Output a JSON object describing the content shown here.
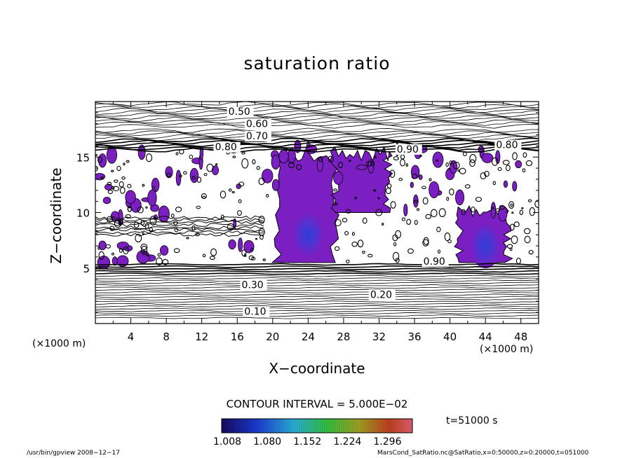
{
  "chart_data": {
    "type": "heatmap",
    "title": "saturation ratio",
    "xlabel": "X−coordinate",
    "ylabel": "Z−coordinate",
    "x_unit_left": "(×1000 m)",
    "x_unit_right": "(×1000 m)",
    "xlim": [
      0,
      50
    ],
    "ylim": [
      0,
      20
    ],
    "x_ticks": [
      4,
      8,
      12,
      16,
      20,
      24,
      28,
      32,
      36,
      40,
      44,
      48
    ],
    "y_ticks": [
      5,
      10,
      15
    ],
    "contour_labels": [
      {
        "text": "0.50",
        "x": 15.0,
        "z": 18.8
      },
      {
        "text": "0.60",
        "x": 17.0,
        "z": 17.7
      },
      {
        "text": "0.70",
        "x": 17.0,
        "z": 16.6
      },
      {
        "text": "0.80",
        "x": 13.5,
        "z": 15.6
      },
      {
        "text": "0.80",
        "x": 45.2,
        "z": 15.8
      },
      {
        "text": "0.90",
        "x": 34.0,
        "z": 15.4
      },
      {
        "text": "0.90",
        "x": 37.0,
        "z": 5.3
      },
      {
        "text": "0.30",
        "x": 16.5,
        "z": 3.2
      },
      {
        "text": "0.20",
        "x": 31.0,
        "z": 2.3
      },
      {
        "text": "0.10",
        "x": 16.8,
        "z": 0.8
      }
    ],
    "supersaturated_regions": [
      {
        "x_range": [
          20.5,
          27.0
        ],
        "z_range": [
          5.5,
          15.5
        ]
      },
      {
        "x_range": [
          41.0,
          46.5
        ],
        "z_range": [
          5.5,
          10.5
        ]
      },
      {
        "x_range": [
          27.0,
          33.0
        ],
        "z_range": [
          10.0,
          15.5
        ]
      }
    ],
    "grid": false,
    "contour_interval_text": "CONTOUR INTERVAL = 5.000E−02",
    "colorbar": {
      "ticks": [
        "1.008",
        "1.080",
        "1.152",
        "1.224",
        "1.296"
      ],
      "min": 1.008,
      "max": 1.296
    },
    "time_text": "t=51000 s"
  },
  "footer": {
    "left": "/usr/bin/gpview   2008−12−17",
    "right": "MarsCond_SatRatio.nc@SatRatio,x=0:50000,z=0:20000,t=051000"
  },
  "colors": {
    "fill": "#7b1fc2",
    "core": "#3a2fd0",
    "contour": "#000000"
  }
}
